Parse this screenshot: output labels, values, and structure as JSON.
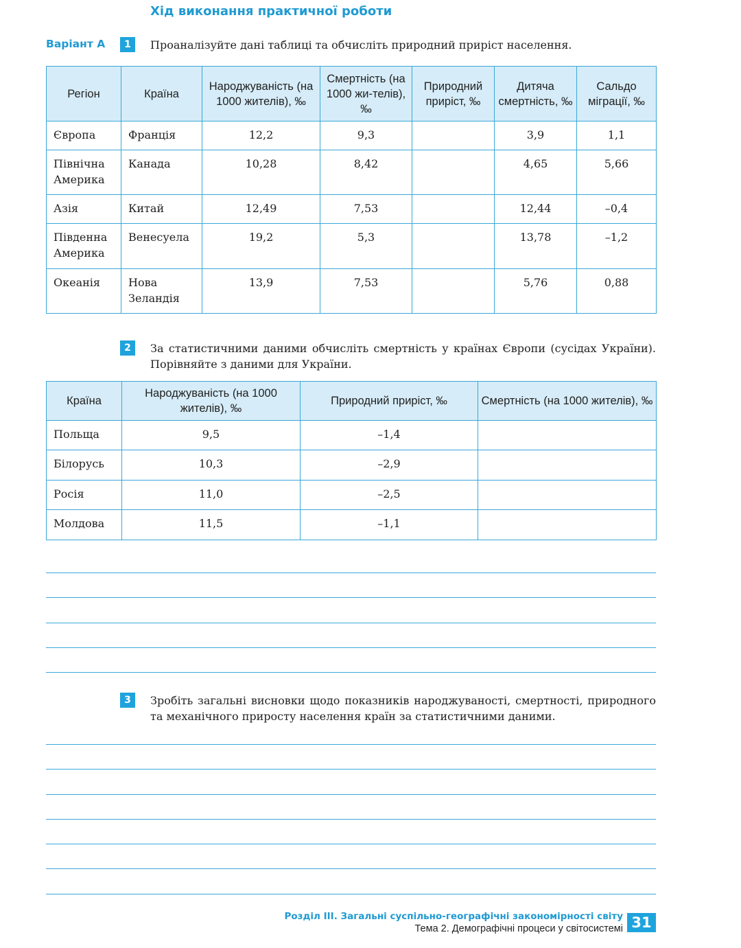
{
  "title": "Хід виконання практичної роботи",
  "variant": "Варіант А",
  "task1": {
    "number": "1",
    "text": "Проаналізуйте дані таблиці та обчисліть природний приріст населення.",
    "headers": [
      "Регіон",
      "Країна",
      "Народжуваність (на 1000 жителів), ‰",
      "Смертність (на 1000 жи-телів), ‰",
      "Природний приріст, ‰",
      "Дитяча смертність, ‰",
      "Сальдо міграції, ‰"
    ],
    "rows": [
      [
        "Європа",
        "Франція",
        "12,2",
        "9,3",
        "",
        "3,9",
        "1,1"
      ],
      [
        "Північна Америка",
        "Канада",
        "10,28",
        "8,42",
        "",
        "4,65",
        "5,66"
      ],
      [
        "Азія",
        "Китай",
        "12,49",
        "7,53",
        "",
        "12,44",
        "–0,4"
      ],
      [
        "Південна Америка",
        "Венесуела",
        "19,2",
        "5,3",
        "",
        "13,78",
        "–1,2"
      ],
      [
        "Океанія",
        "Нова Зеландія",
        "13,9",
        "7,53",
        "",
        "5,76",
        "0,88"
      ]
    ]
  },
  "task2": {
    "number": "2",
    "text": "За статистичними даними обчисліть смертність у країнах Європи (сусідах України). Порівняйте з даними для України.",
    "headers": [
      "Країна",
      "Народжуваність (на 1000 жителів), ‰",
      "Природний приріст, ‰",
      "Смертність (на 1000 жителів), ‰"
    ],
    "rows": [
      [
        "Польща",
        "9,5",
        "–1,4",
        ""
      ],
      [
        "Білорусь",
        "10,3",
        "–2,9",
        ""
      ],
      [
        "Росія",
        "11,0",
        "–2,5",
        ""
      ],
      [
        "Молдова",
        "11,5",
        "–1,1",
        ""
      ]
    ]
  },
  "task3": {
    "number": "3",
    "text": "Зробіть загальні висновки щодо показників народжуваності, смертності, природного та механічного приросту населення країн за статистичними даними."
  },
  "footer": {
    "section": "Розділ III. Загальні суспільно-географічні закономірності світу",
    "topic": "Тема 2. Демографічні процеси у світосистемі",
    "page": "31"
  },
  "colors": {
    "accent": "#1fa3dd",
    "header_bg": "#d6ecf8",
    "border": "#3aa7d8"
  }
}
